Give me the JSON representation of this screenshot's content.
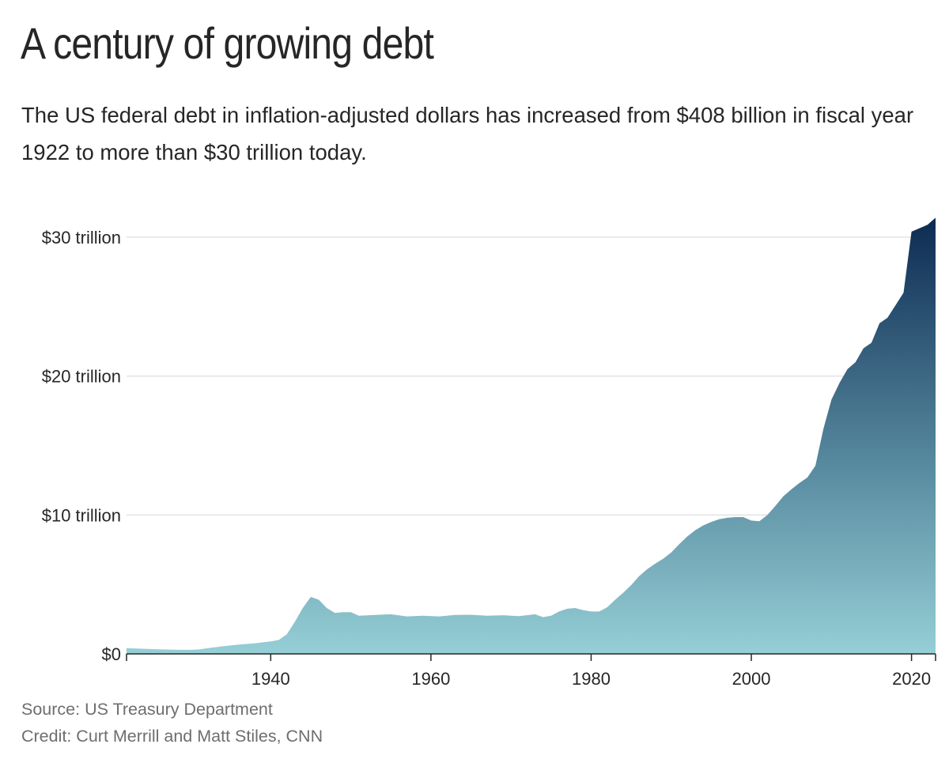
{
  "header": {
    "title": "A century of growing debt",
    "subtitle": "The US federal debt in inflation-adjusted dollars has increased from $408 billion in fiscal year 1922 to more than $30 trillion today."
  },
  "footer": {
    "source": "Source: US Treasury Department",
    "credit": "Credit: Curt Merrill and Matt Stiles, CNN"
  },
  "colors": {
    "gradient_top": "#0d2b52",
    "gradient_mid": "#55879d",
    "gradient_bottom": "#96cfd6",
    "gridline": "#e3e3e3",
    "axis": "#262626"
  },
  "chart_data": {
    "type": "area",
    "title": "A century of growing debt",
    "xlabel": "",
    "ylabel": "",
    "unit": "trillions of inflation-adjusted dollars",
    "xlim": [
      1922,
      2023
    ],
    "ylim": [
      0,
      30
    ],
    "y_ticks": [
      0,
      10,
      20,
      30
    ],
    "y_tick_labels": [
      "$0",
      "$10 trillion",
      "$20 trillion",
      "$30 trillion"
    ],
    "x_ticks": [
      1940,
      1960,
      1980,
      2000,
      2020
    ],
    "x_tick_labels": [
      "1940",
      "1960",
      "1980",
      "2000",
      "2020"
    ],
    "grid": true,
    "series": [
      {
        "name": "US federal debt (inflation-adjusted)",
        "x": [
          1922,
          1924,
          1926,
          1928,
          1930,
          1931,
          1932,
          1934,
          1936,
          1938,
          1940,
          1941,
          1942,
          1943,
          1944,
          1945,
          1946,
          1947,
          1948,
          1949,
          1950,
          1951,
          1953,
          1955,
          1957,
          1959,
          1961,
          1963,
          1965,
          1967,
          1969,
          1971,
          1973,
          1974,
          1975,
          1976,
          1977,
          1978,
          1979,
          1980,
          1981,
          1982,
          1983,
          1984,
          1985,
          1986,
          1987,
          1988,
          1989,
          1990,
          1991,
          1992,
          1993,
          1994,
          1995,
          1996,
          1997,
          1998,
          1999,
          2000,
          2001,
          2002,
          2003,
          2004,
          2005,
          2006,
          2007,
          2008,
          2009,
          2010,
          2011,
          2012,
          2013,
          2014,
          2015,
          2016,
          2017,
          2018,
          2019,
          2020,
          2021,
          2022,
          2023
        ],
        "values": [
          0.41,
          0.37,
          0.33,
          0.3,
          0.29,
          0.32,
          0.4,
          0.55,
          0.67,
          0.76,
          0.9,
          1.0,
          1.4,
          2.3,
          3.3,
          4.1,
          3.9,
          3.3,
          2.95,
          3.0,
          3.0,
          2.75,
          2.8,
          2.85,
          2.7,
          2.75,
          2.7,
          2.8,
          2.82,
          2.75,
          2.78,
          2.72,
          2.85,
          2.65,
          2.75,
          3.05,
          3.25,
          3.3,
          3.15,
          3.05,
          3.05,
          3.35,
          3.9,
          4.4,
          4.95,
          5.6,
          6.1,
          6.5,
          6.85,
          7.3,
          7.9,
          8.45,
          8.9,
          9.25,
          9.5,
          9.7,
          9.8,
          9.85,
          9.85,
          9.6,
          9.55,
          10.0,
          10.65,
          11.35,
          11.85,
          12.3,
          12.7,
          13.55,
          16.2,
          18.3,
          19.5,
          20.5,
          21.0,
          22.0,
          22.4,
          23.8,
          24.2,
          25.1,
          26.0,
          30.4,
          30.65,
          30.9,
          31.4
        ]
      }
    ]
  }
}
